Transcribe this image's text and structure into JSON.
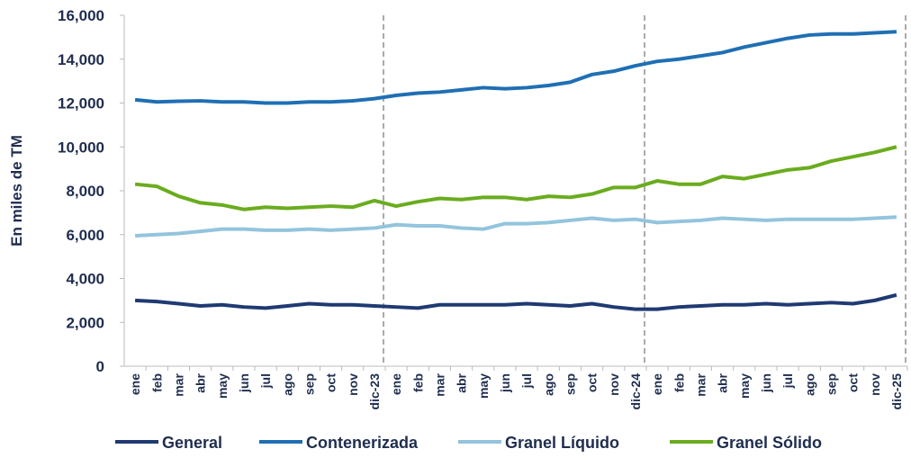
{
  "chart_data": {
    "type": "line",
    "y_label": "En miles de TM",
    "categories": [
      "ene",
      "feb",
      "mar",
      "abr",
      "may",
      "jun",
      "jul",
      "ago",
      "sep",
      "oct",
      "nov",
      "dic-23",
      "ene",
      "feb",
      "mar",
      "abr",
      "may",
      "jun",
      "jul",
      "ago",
      "sep",
      "oct",
      "nov",
      "dic-24",
      "ene",
      "feb",
      "mar",
      "abr",
      "may",
      "jun",
      "jul",
      "ago",
      "sep",
      "oct",
      "nov",
      "dic-25"
    ],
    "series": [
      {
        "name": "General",
        "color": "#1f3a73",
        "values": [
          3000,
          2950,
          2850,
          2750,
          2800,
          2700,
          2650,
          2750,
          2850,
          2800,
          2800,
          2750,
          2700,
          2650,
          2800,
          2800,
          2800,
          2800,
          2850,
          2800,
          2750,
          2850,
          2700,
          2600,
          2600,
          2700,
          2750,
          2800,
          2800,
          2850,
          2800,
          2850,
          2900,
          2850,
          3000,
          3250
        ]
      },
      {
        "name": "Contenerizada",
        "color": "#1f6fb4",
        "values": [
          12150,
          12050,
          12080,
          12100,
          12050,
          12050,
          12000,
          12000,
          12050,
          12050,
          12100,
          12200,
          12350,
          12450,
          12500,
          12600,
          12700,
          12650,
          12700,
          12800,
          12950,
          13300,
          13450,
          13700,
          13900,
          14000,
          14150,
          14300,
          14550,
          14750,
          14950,
          15100,
          15150,
          15150,
          15200,
          15250
        ]
      },
      {
        "name": "Granel Líquido",
        "color": "#93c4dd",
        "values": [
          5950,
          6000,
          6050,
          6150,
          6250,
          6250,
          6200,
          6200,
          6250,
          6200,
          6250,
          6300,
          6450,
          6400,
          6400,
          6300,
          6250,
          6500,
          6500,
          6550,
          6650,
          6750,
          6650,
          6700,
          6550,
          6600,
          6650,
          6750,
          6700,
          6650,
          6700,
          6700,
          6700,
          6700,
          6750,
          6800
        ]
      },
      {
        "name": "Granel Sólido",
        "color": "#6aac1e",
        "values": [
          8300,
          8200,
          7750,
          7450,
          7350,
          7150,
          7250,
          7200,
          7250,
          7300,
          7250,
          7550,
          7300,
          7500,
          7650,
          7600,
          7700,
          7700,
          7600,
          7750,
          7700,
          7850,
          8150,
          8150,
          8450,
          8300,
          8300,
          8650,
          8550,
          8750,
          8950,
          9050,
          9350,
          9550,
          9750,
          10000
        ]
      }
    ],
    "ylim": [
      0,
      16000
    ],
    "yticks": [
      0,
      {
        "value": 2000,
        "label": "2,000"
      },
      {
        "value": 4000,
        "label": "4,000"
      },
      {
        "value": 6000,
        "label": "6,000"
      },
      {
        "value": 8000,
        "label": "8,000"
      },
      {
        "value": 10000,
        "label": "10,000"
      },
      {
        "value": 12000,
        "label": "12,000"
      },
      {
        "value": 14000,
        "label": "14,000"
      },
      {
        "value": 16000,
        "label": "16,000"
      }
    ],
    "legend": "bottom"
  }
}
